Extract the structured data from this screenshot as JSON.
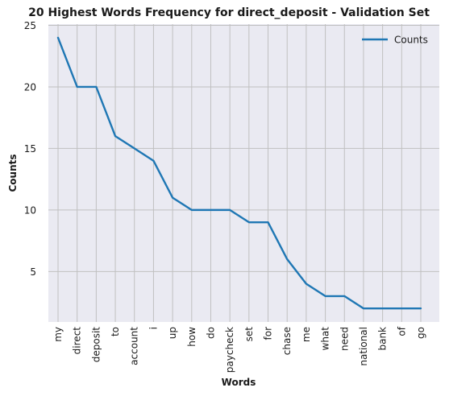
{
  "chart_data": {
    "type": "line",
    "title": "20 Highest Words Frequency for direct_deposit - Validation Set",
    "xlabel": "Words",
    "ylabel": "Counts",
    "categories": [
      "my",
      "direct",
      "deposit",
      "to",
      "account",
      "i",
      "up",
      "how",
      "do",
      "paycheck",
      "set",
      "for",
      "chase",
      "me",
      "what",
      "need",
      "national",
      "bank",
      "of",
      "go"
    ],
    "series": [
      {
        "name": "Counts",
        "color": "#1f77b4",
        "values": [
          24,
          20,
          20,
          16,
          15,
          14,
          11,
          10,
          10,
          10,
          9,
          9,
          6,
          4,
          3,
          3,
          2,
          2,
          2,
          2
        ]
      }
    ],
    "ylim": [
      0.9,
      25.1
    ],
    "yticks": [
      5,
      10,
      15,
      20,
      25
    ],
    "grid": true,
    "legend_position": "top-right",
    "plot_background": "#eaeaf2",
    "grid_color": "#c0c0c0"
  }
}
